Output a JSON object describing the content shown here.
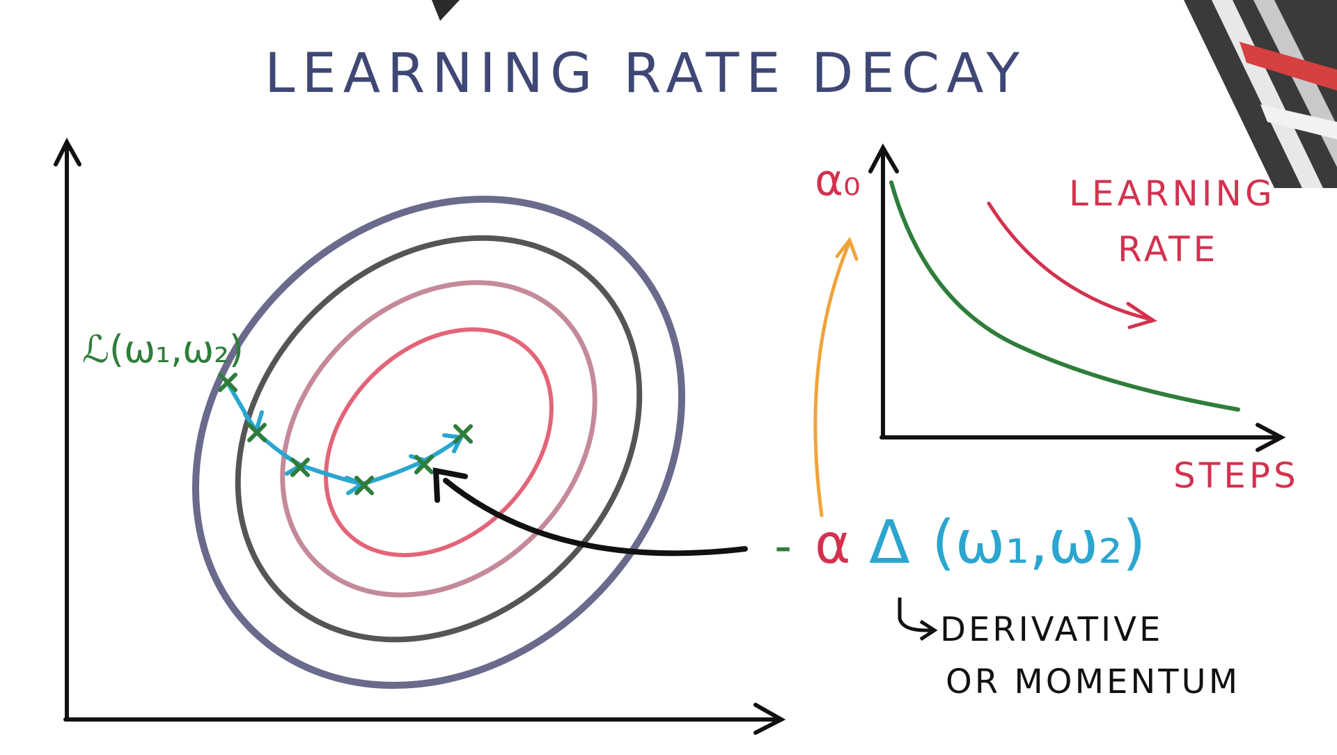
{
  "title": "LEARNING RATE DECAY",
  "loss_label": "ℒ(ω₁,ω₂)",
  "alpha0_label": "α₀",
  "learning_rate_label": [
    "LEARNING",
    "RATE"
  ],
  "steps_label": "STEPS",
  "update_formula": {
    "minus": "-",
    "alpha": "α",
    "delta": "Δ",
    "args": "(ω₁,ω₂)"
  },
  "note_label": [
    "DERIVATIVE",
    "OR MOMENTUM"
  ],
  "colors": {
    "title": "#3f4775",
    "red": "#d2324f",
    "green": "#2f7d3a",
    "blue": "#2aa6cf",
    "orange": "#efa43a",
    "contour_outer": "#6a6a8c",
    "contour_2": "#555555",
    "contour_3": "#c48a9a",
    "contour_inner": "#e36478"
  }
}
